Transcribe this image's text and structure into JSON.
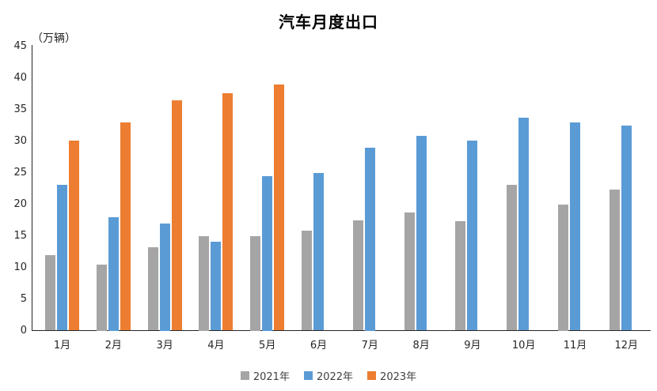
{
  "page": {
    "background": "#FFFFFF"
  },
  "chart_data": {
    "type": "bar",
    "title": "汽车月度出口",
    "unit_label": "（万辆）",
    "categories": [
      "1月",
      "2月",
      "3月",
      "4月",
      "5月",
      "6月",
      "7月",
      "8月",
      "9月",
      "10月",
      "11月",
      "12月"
    ],
    "series": [
      {
        "name": "2021年",
        "color": "#A5A5A5",
        "values": [
          11.9,
          10.5,
          13.2,
          15.0,
          15.0,
          15.8,
          17.4,
          18.7,
          17.3,
          23.1,
          20.0,
          22.3
        ]
      },
      {
        "name": "2022年",
        "color": "#5B9BD5",
        "values": [
          23.1,
          18.0,
          17.0,
          14.1,
          24.5,
          24.9,
          29.0,
          30.8,
          30.1,
          33.7,
          32.9,
          32.4
        ]
      },
      {
        "name": "2023年",
        "color": "#ED7D31",
        "values": [
          30.1,
          32.9,
          36.4,
          37.6,
          38.9,
          null,
          null,
          null,
          null,
          null,
          null,
          null
        ]
      }
    ],
    "ylim": [
      0,
      45
    ],
    "yticks": [
      0,
      5,
      10,
      15,
      20,
      25,
      30,
      35,
      40,
      45
    ],
    "xlabel": "",
    "ylabel": "",
    "grid": false,
    "legend_position": "bottom",
    "axis_color": "#262626",
    "text_color": "#262626"
  }
}
